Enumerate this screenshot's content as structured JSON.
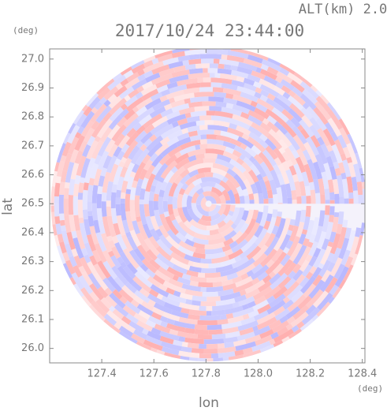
{
  "chart_data": {
    "type": "ppi",
    "title": "2017/10/24 23:44:00",
    "annotation": "ALT(km) 2.0",
    "x_label": "lon",
    "y_label": "lat",
    "x_unit": "(deg)",
    "y_unit": "(deg)",
    "xlim": [
      127.2,
      128.41
    ],
    "ylim": [
      25.95,
      27.035
    ],
    "xticks": [
      127.4,
      127.6,
      127.8,
      {
        "value": 128,
        "label": "128.0"
      },
      128.2,
      128.4
    ],
    "yticks": [
      {
        "value": 26,
        "label": "26.0"
      },
      26.1,
      26.2,
      26.3,
      26.4,
      26.5,
      26.6,
      26.7,
      26.8,
      26.9,
      {
        "value": 27,
        "label": "27.0"
      }
    ],
    "center": [
      127.81,
      26.5
    ]
  }
}
